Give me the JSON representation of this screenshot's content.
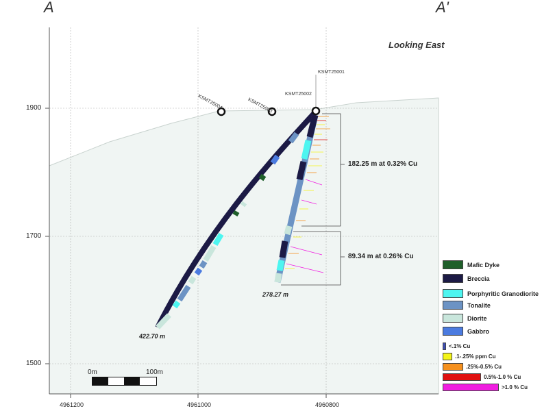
{
  "section": {
    "left_label": "A",
    "right_label": "A'",
    "view": "Looking East"
  },
  "elevation_labels": [
    "1900",
    "1700",
    "1500"
  ],
  "northing_labels": [
    "4961200",
    "4961000",
    "4960800"
  ],
  "holes": [
    {
      "id": "KSMT25001",
      "depth_label": ""
    },
    {
      "id": "KSMT25002",
      "depth_label": "278.27 m"
    },
    {
      "id": "KSMT25003",
      "depth_label": ""
    },
    {
      "id": "KSMT25004",
      "depth_label": "422.70 m"
    }
  ],
  "intervals": [
    "182.25 m at 0.32% Cu",
    "89.34 m at 0.26% Cu"
  ],
  "lithology_legend": [
    {
      "label": "Mafic Dyke",
      "color": "#1f5f2a"
    },
    {
      "label": "Breccia",
      "color": "#1c1a45"
    },
    {
      "label": "Porphyritic Granodiorite",
      "color": "#4df5f0"
    },
    {
      "label": "Tonalite",
      "color": "#6c93c4"
    },
    {
      "label": "Diorite",
      "color": "#c9e6dc"
    },
    {
      "label": "Gabbro",
      "color": "#4b7be0"
    }
  ],
  "grade_legend": [
    {
      "label": "<.1% Cu",
      "color": "#3d4fb5"
    },
    {
      "label": ".1-.25% ppm Cu",
      "color": "#f4f418"
    },
    {
      "label": ".25%-0.5% Cu",
      "color": "#f5901e"
    },
    {
      "label": "0.5%-1.0 % Cu",
      "color": "#e01010"
    },
    {
      "label": ">1.0 % Cu",
      "color": "#f01ee0"
    }
  ],
  "scale_bar": {
    "start_label": "0m",
    "end_label": "100m"
  }
}
